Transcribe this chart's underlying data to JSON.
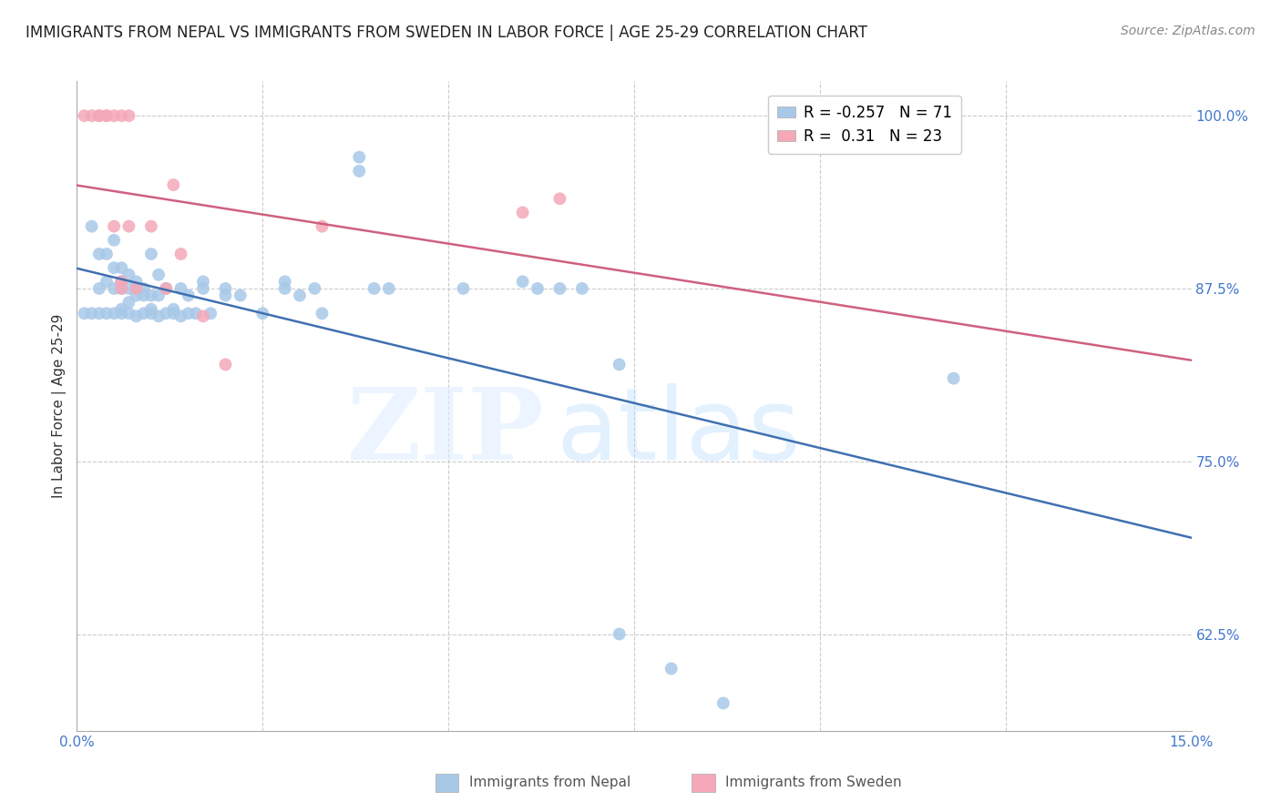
{
  "title": "IMMIGRANTS FROM NEPAL VS IMMIGRANTS FROM SWEDEN IN LABOR FORCE | AGE 25-29 CORRELATION CHART",
  "source": "Source: ZipAtlas.com",
  "ylabel": "In Labor Force | Age 25-29",
  "xlim": [
    0.0,
    0.15
  ],
  "ylim": [
    0.555,
    1.025
  ],
  "xticks": [
    0.0,
    0.025,
    0.05,
    0.075,
    0.1,
    0.125,
    0.15
  ],
  "xtick_labels": [
    "0.0%",
    "",
    "",
    "",
    "",
    "",
    "15.0%"
  ],
  "ytick_labels_right": [
    "100.0%",
    "87.5%",
    "75.0%",
    "62.5%"
  ],
  "ytick_positions_right": [
    1.0,
    0.875,
    0.75,
    0.625
  ],
  "nepal_color": "#a8c8e8",
  "sweden_color": "#f4a8b8",
  "nepal_R": -0.257,
  "nepal_N": 71,
  "sweden_R": 0.31,
  "sweden_N": 23,
  "nepal_line_color": "#4070b0",
  "sweden_line_color": "#d06080",
  "nepal_scatter": [
    [
      0.001,
      0.857
    ],
    [
      0.002,
      0.857
    ],
    [
      0.002,
      0.92
    ],
    [
      0.003,
      0.857
    ],
    [
      0.003,
      0.875
    ],
    [
      0.003,
      0.9
    ],
    [
      0.004,
      0.857
    ],
    [
      0.004,
      0.88
    ],
    [
      0.004,
      0.9
    ],
    [
      0.005,
      0.857
    ],
    [
      0.005,
      0.875
    ],
    [
      0.005,
      0.89
    ],
    [
      0.005,
      0.91
    ],
    [
      0.006,
      0.857
    ],
    [
      0.006,
      0.86
    ],
    [
      0.006,
      0.875
    ],
    [
      0.006,
      0.88
    ],
    [
      0.006,
      0.89
    ],
    [
      0.007,
      0.857
    ],
    [
      0.007,
      0.865
    ],
    [
      0.007,
      0.875
    ],
    [
      0.007,
      0.885
    ],
    [
      0.008,
      0.855
    ],
    [
      0.008,
      0.87
    ],
    [
      0.008,
      0.875
    ],
    [
      0.008,
      0.88
    ],
    [
      0.009,
      0.857
    ],
    [
      0.009,
      0.87
    ],
    [
      0.009,
      0.875
    ],
    [
      0.01,
      0.857
    ],
    [
      0.01,
      0.86
    ],
    [
      0.01,
      0.87
    ],
    [
      0.01,
      0.9
    ],
    [
      0.011,
      0.855
    ],
    [
      0.011,
      0.87
    ],
    [
      0.011,
      0.885
    ],
    [
      0.012,
      0.857
    ],
    [
      0.012,
      0.875
    ],
    [
      0.013,
      0.857
    ],
    [
      0.013,
      0.86
    ],
    [
      0.014,
      0.855
    ],
    [
      0.014,
      0.875
    ],
    [
      0.015,
      0.857
    ],
    [
      0.015,
      0.87
    ],
    [
      0.016,
      0.857
    ],
    [
      0.017,
      0.875
    ],
    [
      0.017,
      0.88
    ],
    [
      0.018,
      0.857
    ],
    [
      0.02,
      0.87
    ],
    [
      0.02,
      0.875
    ],
    [
      0.022,
      0.87
    ],
    [
      0.025,
      0.857
    ],
    [
      0.028,
      0.875
    ],
    [
      0.028,
      0.88
    ],
    [
      0.03,
      0.87
    ],
    [
      0.032,
      0.875
    ],
    [
      0.033,
      0.857
    ],
    [
      0.038,
      0.96
    ],
    [
      0.038,
      0.97
    ],
    [
      0.04,
      0.875
    ],
    [
      0.042,
      0.875
    ],
    [
      0.052,
      0.875
    ],
    [
      0.06,
      0.88
    ],
    [
      0.062,
      0.875
    ],
    [
      0.065,
      0.875
    ],
    [
      0.068,
      0.875
    ],
    [
      0.073,
      0.82
    ],
    [
      0.073,
      0.625
    ],
    [
      0.08,
      0.6
    ],
    [
      0.087,
      0.575
    ],
    [
      0.118,
      0.81
    ]
  ],
  "sweden_scatter": [
    [
      0.001,
      1.0
    ],
    [
      0.002,
      1.0
    ],
    [
      0.003,
      1.0
    ],
    [
      0.003,
      1.0
    ],
    [
      0.004,
      1.0
    ],
    [
      0.004,
      1.0
    ],
    [
      0.005,
      1.0
    ],
    [
      0.005,
      0.92
    ],
    [
      0.006,
      1.0
    ],
    [
      0.006,
      0.88
    ],
    [
      0.006,
      0.875
    ],
    [
      0.007,
      0.92
    ],
    [
      0.007,
      1.0
    ],
    [
      0.008,
      0.875
    ],
    [
      0.01,
      0.92
    ],
    [
      0.012,
      0.875
    ],
    [
      0.013,
      0.95
    ],
    [
      0.014,
      0.9
    ],
    [
      0.017,
      0.855
    ],
    [
      0.02,
      0.82
    ],
    [
      0.033,
      0.92
    ],
    [
      0.06,
      0.93
    ],
    [
      0.065,
      0.94
    ]
  ],
  "background_color": "#ffffff",
  "title_fontsize": 12,
  "axis_label_fontsize": 11,
  "tick_fontsize": 11,
  "legend_fontsize": 12
}
